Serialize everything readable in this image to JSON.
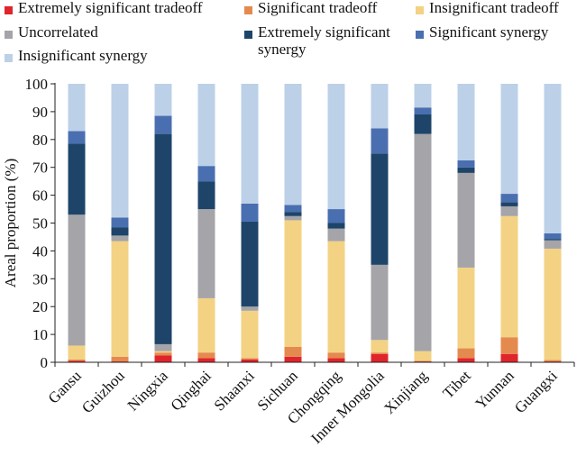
{
  "chart_data": {
    "type": "bar",
    "stacked": true,
    "title": "",
    "xlabel": "",
    "ylabel": "Areal proportion (%)",
    "ylim": [
      0,
      100
    ],
    "yticks": [
      0,
      10,
      20,
      30,
      40,
      50,
      60,
      70,
      80,
      90,
      100
    ],
    "grid": false,
    "legend_position": "top",
    "categories": [
      "Gansu",
      "Guizhou",
      "Ningxia",
      "Qinghai",
      "Shaanxi",
      "Sichuan",
      "Chongqing",
      "Inner Mongolia",
      "Xinjiang",
      "Tibet",
      "Yunnan",
      "Guangxi"
    ],
    "series": [
      {
        "name": "Extremely significant tradeoff",
        "color": "#e0242b",
        "values": [
          0.5,
          0.3,
          2.5,
          1.5,
          1.0,
          2.0,
          1.5,
          3.0,
          0.3,
          1.5,
          3.0,
          0.3
        ]
      },
      {
        "name": "Significant tradeoff",
        "color": "#e58a4f",
        "values": [
          0.5,
          1.7,
          1.0,
          2.0,
          0.5,
          3.5,
          2.0,
          0.5,
          0.2,
          3.5,
          6.0,
          0.5
        ]
      },
      {
        "name": "Insignificant tradeoff",
        "color": "#f3d283",
        "values": [
          5.0,
          41.5,
          0.5,
          19.5,
          17.0,
          45.5,
          40.0,
          4.5,
          3.5,
          29.0,
          43.5,
          40.0
        ]
      },
      {
        "name": "Uncorrelated",
        "color": "#a5a4a9",
        "values": [
          47.0,
          2.0,
          2.5,
          32.0,
          1.5,
          1.5,
          4.5,
          27.0,
          78.0,
          34.0,
          3.5,
          3.0
        ]
      },
      {
        "name": "Extremely significant synergy",
        "color": "#1e4569",
        "values": [
          25.5,
          3.0,
          75.5,
          10.0,
          30.5,
          1.5,
          2.0,
          40.0,
          7.0,
          2.0,
          1.5,
          0.5
        ]
      },
      {
        "name": "Significant synergy",
        "color": "#4a6fb0",
        "values": [
          4.5,
          3.5,
          6.5,
          5.5,
          6.5,
          2.5,
          5.0,
          9.0,
          2.5,
          2.5,
          3.0,
          2.0
        ]
      },
      {
        "name": "Insignificant synergy",
        "color": "#bcd0e8",
        "values": [
          17.0,
          48.0,
          11.5,
          29.5,
          43.0,
          43.5,
          45.0,
          16.0,
          8.5,
          27.5,
          39.5,
          53.7
        ]
      }
    ]
  }
}
